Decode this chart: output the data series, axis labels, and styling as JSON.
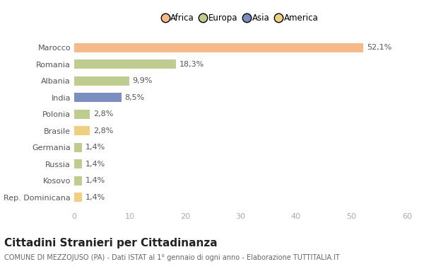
{
  "categories": [
    "Marocco",
    "Romania",
    "Albania",
    "India",
    "Polonia",
    "Brasile",
    "Germania",
    "Russia",
    "Kosovo",
    "Rep. Dominicana"
  ],
  "values": [
    52.1,
    18.3,
    9.9,
    8.5,
    2.8,
    2.8,
    1.4,
    1.4,
    1.4,
    1.4
  ],
  "labels": [
    "52,1%",
    "18,3%",
    "9,9%",
    "8,5%",
    "2,8%",
    "2,8%",
    "1,4%",
    "1,4%",
    "1,4%",
    "1,4%"
  ],
  "colors": [
    "#F5B98A",
    "#BFCC8F",
    "#BFCC8F",
    "#7B8EC0",
    "#BFCC8F",
    "#F0D080",
    "#BFCC8F",
    "#BFCC8F",
    "#BFCC8F",
    "#F0D080"
  ],
  "legend": [
    {
      "label": "Africa",
      "color": "#F5B98A"
    },
    {
      "label": "Europa",
      "color": "#BFCC8F"
    },
    {
      "label": "Asia",
      "color": "#7B8EC0"
    },
    {
      "label": "America",
      "color": "#F0D080"
    }
  ],
  "xlim": [
    0,
    60
  ],
  "xticks": [
    0,
    10,
    20,
    30,
    40,
    50,
    60
  ],
  "title": "Cittadini Stranieri per Cittadinanza",
  "subtitle": "COMUNE DI MEZZOJUSO (PA) - Dati ISTAT al 1° gennaio di ogni anno - Elaborazione TUTTITALIA.IT",
  "background_color": "#ffffff",
  "bar_height": 0.55,
  "label_fontsize": 8,
  "category_fontsize": 8,
  "title_fontsize": 11,
  "subtitle_fontsize": 7
}
